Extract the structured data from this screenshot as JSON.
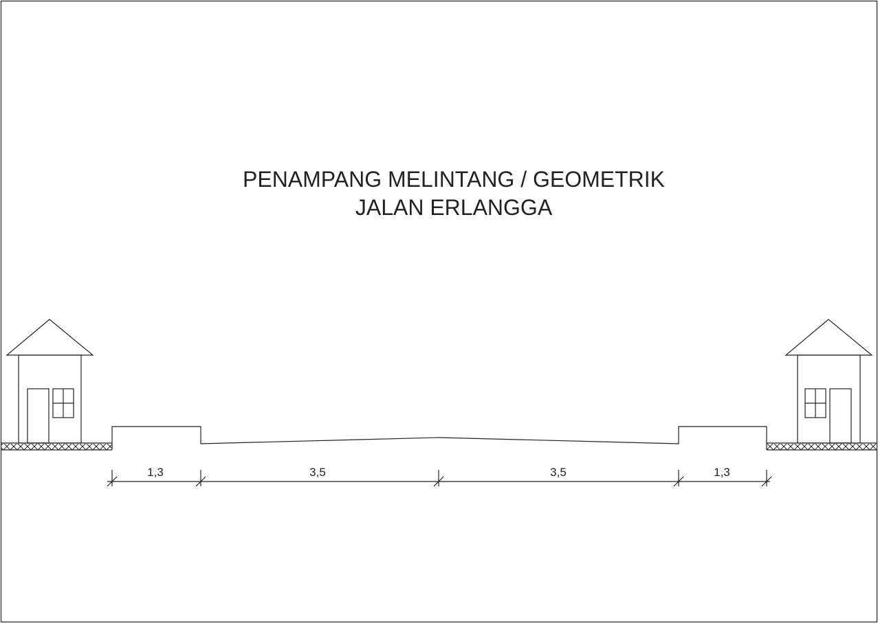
{
  "title": {
    "line1": "PENAMPANG MELINTANG / GEOMETRIK",
    "line2": "JALAN ERLANGGA"
  },
  "dimensions": [
    "1,3",
    "3,5",
    "3,5",
    "1,3"
  ]
}
